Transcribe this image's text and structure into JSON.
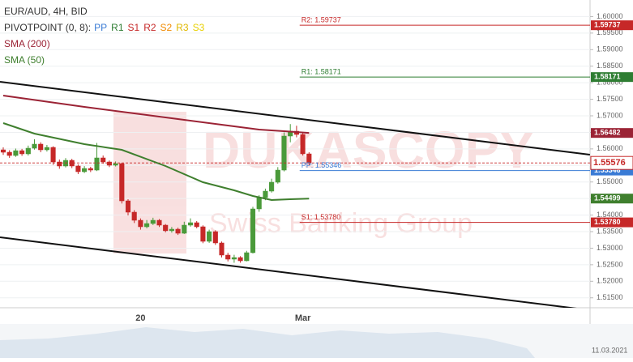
{
  "chart_data": {
    "type": "candlestick",
    "title": "EUR/AUD, 4H, BID",
    "indicator": {
      "label": "PIVOTPOINT (0, 8):",
      "items": [
        {
          "name": "PP",
          "color": "#3a7bd5"
        },
        {
          "name": "R1",
          "color": "#2e7d32"
        },
        {
          "name": "S1",
          "color": "#c62828"
        },
        {
          "name": "R2",
          "color": "#c62828"
        },
        {
          "name": "S2",
          "color": "#f08a00"
        },
        {
          "name": "R3",
          "color": "#e0b800"
        },
        {
          "name": "S3",
          "color": "#e8d000"
        }
      ]
    },
    "watermark": [
      "DUKASCOPY",
      "Swiss Banking Group"
    ],
    "date": "11.03.2021",
    "categories": [
      null,
      null,
      null,
      null,
      null,
      null,
      null,
      null,
      null,
      null,
      null,
      null,
      null,
      null,
      null,
      null,
      null,
      null,
      null,
      null,
      null,
      null,
      "20",
      null,
      null,
      null,
      null,
      null,
      null,
      null,
      null,
      null,
      null,
      null,
      null,
      null,
      null,
      null,
      null,
      null,
      null,
      null,
      null,
      null,
      null,
      null,
      null,
      null,
      "Mar",
      null
    ],
    "up_color": "#4a9a3a",
    "down_color": "#c62828",
    "open": [
      1.55972,
      1.55899,
      1.55801,
      1.55947,
      1.5585,
      1.56021,
      1.56144,
      1.55972,
      1.56046,
      1.55605,
      1.55483,
      1.55654,
      1.55483,
      1.55311,
      1.55409,
      1.5536,
      1.55728,
      1.55605,
      1.55507,
      1.55556,
      1.5443,
      1.54088,
      1.53843,
      1.53647,
      1.53745,
      1.53843,
      1.53696,
      1.53525,
      1.53574,
      1.53451,
      1.53696,
      1.5377,
      1.53647,
      1.53207,
      1.535,
      1.53158,
      1.52791,
      1.52668,
      1.52717,
      1.52619,
      1.52864,
      1.54186,
      1.54528,
      1.54724,
      1.54993,
      1.5536,
      1.56388,
      1.56535,
      1.56437,
      1.5585
    ],
    "high": [
      1.5605,
      1.5596,
      1.5601,
      1.56,
      1.561,
      1.5629,
      1.562,
      1.5612,
      1.5608,
      1.5568,
      1.5572,
      1.557,
      1.5553,
      1.5548,
      1.5546,
      1.5618,
      1.558,
      1.5565,
      1.5562,
      1.5558,
      1.5448,
      1.5415,
      1.539,
      1.5385,
      1.5392,
      1.5388,
      1.5373,
      1.5364,
      1.5362,
      1.538,
      1.539,
      1.5382,
      1.5369,
      1.5356,
      1.5354,
      1.532,
      1.5286,
      1.528,
      1.5276,
      1.5292,
      1.5425,
      1.546,
      1.548,
      1.551,
      1.5545,
      1.565,
      1.5675,
      1.567,
      1.5648,
      1.559
    ],
    "low": [
      1.5582,
      1.5573,
      1.5576,
      1.5579,
      1.558,
      1.5598,
      1.559,
      1.5592,
      1.5552,
      1.554,
      1.5544,
      1.5542,
      1.5524,
      1.5527,
      1.553,
      1.5533,
      1.5555,
      1.5545,
      1.5547,
      1.5435,
      1.5399,
      1.5376,
      1.5356,
      1.536,
      1.537,
      1.5364,
      1.5348,
      1.5347,
      1.534,
      1.5343,
      1.5365,
      1.536,
      1.5315,
      1.5316,
      1.531,
      1.5272,
      1.526,
      1.5256,
      1.5256,
      1.526,
      1.5284,
      1.541,
      1.5445,
      1.5468,
      1.5495,
      1.5532,
      1.562,
      1.5635,
      1.558,
      1.555
    ],
    "close": [
      1.55899,
      1.55801,
      1.55947,
      1.5585,
      1.56021,
      1.56144,
      1.55972,
      1.56046,
      1.55605,
      1.55483,
      1.55654,
      1.55483,
      1.55311,
      1.55409,
      1.5536,
      1.55728,
      1.55605,
      1.55507,
      1.55556,
      1.5443,
      1.54088,
      1.53843,
      1.53647,
      1.53745,
      1.53843,
      1.53696,
      1.53525,
      1.53574,
      1.53451,
      1.53696,
      1.5377,
      1.53647,
      1.53207,
      1.535,
      1.53158,
      1.52791,
      1.52668,
      1.52717,
      1.52619,
      1.52864,
      1.54186,
      1.54528,
      1.54724,
      1.54993,
      1.5536,
      1.56388,
      1.56535,
      1.56437,
      1.5585,
      1.55576
    ],
    "series": [
      {
        "name": "SMA (200)",
        "color": "#9b2335",
        "x": [
          0,
          13,
          26,
          36,
          41,
          45,
          49
        ],
        "values": [
          1.57612,
          1.57269,
          1.56951,
          1.56707,
          1.56584,
          1.56535,
          1.56482
        ]
      },
      {
        "name": "SMA (50)",
        "color": "#3f7f2e",
        "x": [
          0,
          5,
          13,
          19,
          26,
          32,
          37,
          40,
          43,
          46,
          49
        ],
        "values": [
          1.5678,
          1.56462,
          1.56144,
          1.55972,
          1.55483,
          1.54993,
          1.54749,
          1.54577,
          1.54455,
          1.54479,
          1.54499
        ]
      }
    ],
    "pivots": [
      {
        "label": "R2: 1.59737",
        "value": 1.59737,
        "tag": "1.59737",
        "color": "#c62828"
      },
      {
        "label": "R1: 1.58171",
        "value": 1.58171,
        "tag": "1.58171",
        "color": "#2e7d32"
      },
      {
        "label": "PP: 1.55346",
        "value": 1.55346,
        "tag": "1.55346",
        "color": "#3a7bd5"
      },
      {
        "label": "S1: 1.53780",
        "value": 1.5378,
        "tag": "1.53780",
        "color": "#c62828"
      }
    ],
    "trendlines": [
      {
        "x": [
          -0.52,
          94
        ],
        "values": [
          1.58028,
          1.55826
        ]
      },
      {
        "x": [
          -0.52,
          94
        ],
        "values": [
          1.53329,
          1.51127
        ]
      }
    ],
    "ylim": [
      1.512,
      1.605
    ],
    "yticks": [
      {
        "value": 1.515,
        "label": "1.51500"
      },
      {
        "value": 1.52,
        "label": "1.52000"
      },
      {
        "value": 1.525,
        "label": "1.52500"
      },
      {
        "value": 1.53,
        "label": "1.53000"
      },
      {
        "value": 1.535,
        "label": "1.53500"
      },
      {
        "value": 1.54,
        "label": "1.54000"
      },
      {
        "value": 1.545,
        "label": "1.54500"
      },
      {
        "value": 1.55,
        "label": "1.55000"
      },
      {
        "value": 1.555,
        "label": "1.55500"
      },
      {
        "value": 1.56,
        "label": "1.56000"
      },
      {
        "value": 1.565,
        "label": "1.56500"
      },
      {
        "value": 1.57,
        "label": "1.57000"
      },
      {
        "value": 1.575,
        "label": "1.57500"
      },
      {
        "value": 1.58,
        "label": "1.58000"
      },
      {
        "value": 1.585,
        "label": "1.58500"
      },
      {
        "value": 1.59,
        "label": "1.59000"
      },
      {
        "value": 1.595,
        "label": "1.59500"
      },
      {
        "value": 1.6,
        "label": "1.60000"
      }
    ],
    "grid": true
  }
}
